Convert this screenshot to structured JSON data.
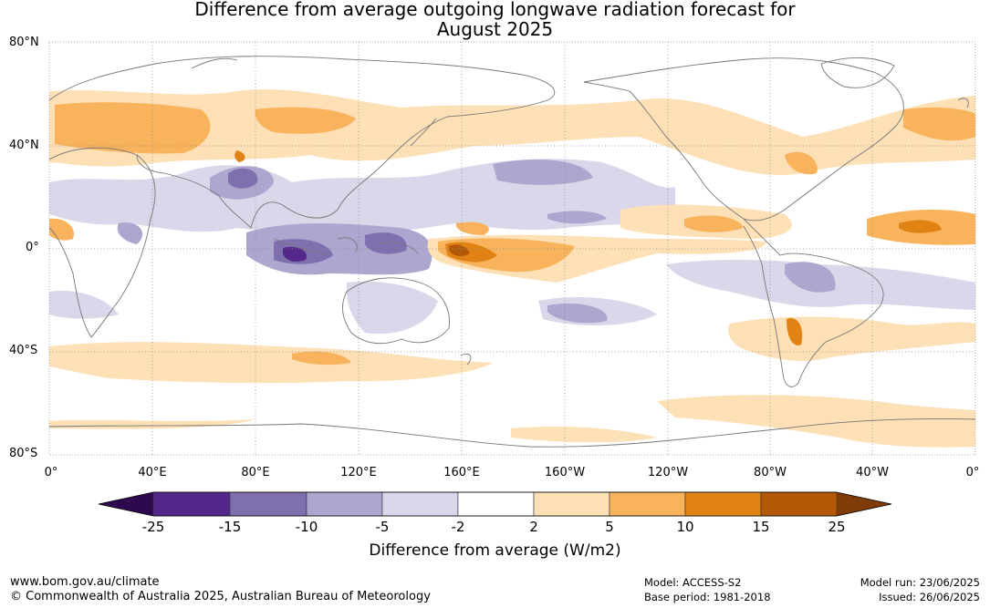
{
  "title_line1": "Difference from average outgoing longwave radiation forecast for",
  "title_line2": "August 2025",
  "lat_labels": [
    "80°N",
    "40°N",
    "0°",
    "40°S",
    "80°S"
  ],
  "lon_labels": [
    "0°",
    "40°E",
    "80°E",
    "120°E",
    "160°E",
    "160°W",
    "120°W",
    "80°W",
    "40°W",
    "0°"
  ],
  "colorbar": {
    "label": "Difference from average (W/m2)",
    "ticks": [
      "-25",
      "-15",
      "-10",
      "-5",
      "-2",
      "2",
      "5",
      "10",
      "15",
      "25"
    ],
    "colors": [
      "#2d0a4e",
      "#54288a",
      "#7f6fae",
      "#ada6cf",
      "#d9d8ea",
      "#ffffff",
      "#fee0b6",
      "#f8b35c",
      "#e08214",
      "#b35806",
      "#7f3b08"
    ]
  },
  "footer": {
    "website": "www.bom.gov.au/climate",
    "copyright": "© Commonwealth of Australia 2025, Australian Bureau of Meteorology",
    "model": "Model: ACCESS-S2",
    "base_period": "Base period: 1981-2018",
    "model_run": "Model run: 23/06/2025",
    "issued": "Issued: 26/06/2025"
  }
}
